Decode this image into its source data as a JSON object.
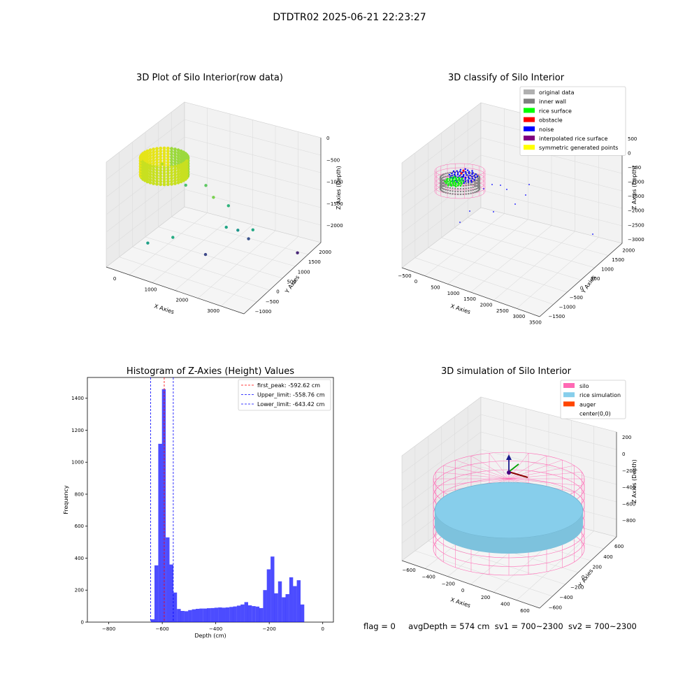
{
  "page_title": "DTDTR02 2025-06-21 22:23:27",
  "chart_data": [
    {
      "type": "scatter",
      "title": "3D Plot of Silo Interior(row data)",
      "xlabel": "X Axies",
      "ylabel": "Y Axies",
      "zlabel": "Z Axies (Depth)",
      "x_ticks": [
        "0",
        "1000",
        "2000",
        "3000"
      ],
      "y_ticks": [
        "−1000",
        "−500",
        "0",
        "500",
        "1000",
        "1500",
        "2000"
      ],
      "z_ticks": [
        "0",
        "−500",
        "−1000",
        "−1500",
        "−2000"
      ],
      "xlim": [
        -500,
        3600
      ],
      "ylim": [
        -1200,
        2000
      ],
      "zlim": [
        -2400,
        0
      ],
      "colormap": "viridis",
      "points": [
        {
          "x": 0,
          "y": 400,
          "z": -600,
          "c": "#b8de29"
        },
        {
          "x": 700,
          "y": 400,
          "z": -900,
          "c": "#4ac16d"
        },
        {
          "x": 1300,
          "y": 400,
          "z": -750,
          "c": "#5ec962"
        },
        {
          "x": 1600,
          "y": 300,
          "z": -900,
          "c": "#7ad151"
        },
        {
          "x": 1900,
          "y": 500,
          "z": -1100,
          "c": "#2fb47c"
        },
        {
          "x": 2200,
          "y": 0,
          "z": -1300,
          "c": "#21a585"
        },
        {
          "x": 2400,
          "y": 200,
          "z": -1400,
          "c": "#1f958b"
        },
        {
          "x": 2700,
          "y": 400,
          "z": -1400,
          "c": "#22a884"
        },
        {
          "x": 900,
          "y": -400,
          "z": -1700,
          "c": "#25ab82"
        },
        {
          "x": 300,
          "y": -600,
          "z": -1900,
          "c": "#1fa088"
        },
        {
          "x": 1800,
          "y": -300,
          "z": -1900,
          "c": "#3e4989"
        },
        {
          "x": 2500,
          "y": 500,
          "z": -1700,
          "c": "#3b528b"
        },
        {
          "x": 3300,
          "y": 1400,
          "z": -2200,
          "c": "#482677"
        }
      ]
    },
    {
      "type": "scatter",
      "title": "3D classify of Silo Interior",
      "xlabel": "X Axies",
      "ylabel": "Y Axies",
      "zlabel": "Z Axies (Depth)",
      "x_ticks": [
        "−500",
        "0",
        "500",
        "1000",
        "1500",
        "2000",
        "2500",
        "3000",
        "3500"
      ],
      "y_ticks": [
        "−1500",
        "−1000",
        "−500",
        "0",
        "500",
        "1000",
        "1500",
        "2000"
      ],
      "z_ticks": [
        "500",
        "0",
        "−500",
        "−1000",
        "−1500",
        "−2000",
        "−2500",
        "−3000"
      ],
      "xlim": [
        -600,
        3600
      ],
      "ylim": [
        -1600,
        2200
      ],
      "zlim": [
        -3100,
        600
      ],
      "legend": [
        {
          "name": "original data",
          "color": "#b0b0b0"
        },
        {
          "name": "inner wall",
          "color": "#808080"
        },
        {
          "name": "rice surface",
          "color": "#00ff00"
        },
        {
          "name": "obstacle",
          "color": "#ff0000"
        },
        {
          "name": "noise",
          "color": "#0000ff"
        },
        {
          "name": "interpolated rice surface",
          "color": "#800080"
        },
        {
          "name": "symmetric generated points",
          "color": "#ffff00"
        }
      ],
      "legend_position": "top-right"
    },
    {
      "type": "bar",
      "title": "Histogram of Z-Axies (Height) Values",
      "xlabel": "Depth (cm)",
      "ylabel": "Frequency",
      "xlim": [
        -880,
        40
      ],
      "ylim": [
        0,
        1530
      ],
      "x_ticks": [
        -800,
        -600,
        -400,
        -200,
        0
      ],
      "y_ticks": [
        0,
        200,
        400,
        600,
        800,
        1000,
        1200,
        1400
      ],
      "bin_width": 14,
      "bar_color": "#0000ff",
      "bins": [
        {
          "x": -643,
          "y": 18
        },
        {
          "x": -629,
          "y": 355
        },
        {
          "x": -615,
          "y": 1115
        },
        {
          "x": -601,
          "y": 1457
        },
        {
          "x": -587,
          "y": 530
        },
        {
          "x": -573,
          "y": 360
        },
        {
          "x": -559,
          "y": 185
        },
        {
          "x": -545,
          "y": 82
        },
        {
          "x": -531,
          "y": 70
        },
        {
          "x": -517,
          "y": 68
        },
        {
          "x": -503,
          "y": 75
        },
        {
          "x": -489,
          "y": 80
        },
        {
          "x": -475,
          "y": 83
        },
        {
          "x": -461,
          "y": 85
        },
        {
          "x": -447,
          "y": 85
        },
        {
          "x": -433,
          "y": 87
        },
        {
          "x": -419,
          "y": 88
        },
        {
          "x": -405,
          "y": 90
        },
        {
          "x": -391,
          "y": 92
        },
        {
          "x": -377,
          "y": 90
        },
        {
          "x": -363,
          "y": 92
        },
        {
          "x": -349,
          "y": 95
        },
        {
          "x": -335,
          "y": 98
        },
        {
          "x": -321,
          "y": 103
        },
        {
          "x": -307,
          "y": 110
        },
        {
          "x": -293,
          "y": 125
        },
        {
          "x": -279,
          "y": 105
        },
        {
          "x": -265,
          "y": 100
        },
        {
          "x": -251,
          "y": 97
        },
        {
          "x": -237,
          "y": 88
        },
        {
          "x": -223,
          "y": 200
        },
        {
          "x": -209,
          "y": 330
        },
        {
          "x": -195,
          "y": 410
        },
        {
          "x": -181,
          "y": 180
        },
        {
          "x": -167,
          "y": 255
        },
        {
          "x": -153,
          "y": 155
        },
        {
          "x": -139,
          "y": 175
        },
        {
          "x": -125,
          "y": 280
        },
        {
          "x": -111,
          "y": 225
        },
        {
          "x": -97,
          "y": 262
        },
        {
          "x": -83,
          "y": 110
        }
      ],
      "vlines": [
        {
          "label": "first_peak: -592.62 cm",
          "value": -592.62,
          "color": "#ff0000"
        },
        {
          "label": "Upper_limit: -558.76 cm",
          "value": -558.76,
          "color": "#0000ff"
        },
        {
          "label": "Lower_limit: -643.42 cm",
          "value": -643.42,
          "color": "#0000ff"
        }
      ],
      "legend_position": "top-right"
    },
    {
      "type": "scatter",
      "title": "3D simulation of Silo Interior",
      "xlabel": "X Axies",
      "ylabel": "Y Axies",
      "zlabel": "Z Axies (Depth)",
      "x_ticks": [
        "−600",
        "−400",
        "−200",
        "0",
        "200",
        "400",
        "600"
      ],
      "y_ticks": [
        "−600",
        "−400",
        "−200",
        "0",
        "200",
        "400",
        "600"
      ],
      "z_ticks": [
        "200",
        "0",
        "−200",
        "−400",
        "−600",
        "−800"
      ],
      "xlim": [
        -650,
        650
      ],
      "ylim": [
        -650,
        650
      ],
      "zlim": [
        -950,
        300
      ],
      "legend": [
        {
          "name": "silo",
          "color": "#ff69b4"
        },
        {
          "name": "rice simulation",
          "color": "#87ceeb"
        },
        {
          "name": "auger",
          "color": "#ff4500"
        },
        {
          "name": "center(0,0)",
          "color": "#ffffff"
        }
      ],
      "legend_position": "top-right"
    }
  ],
  "status": {
    "flag": "flag = 0",
    "avg_depth": "avgDepth = 574 cm",
    "sv1": "sv1 = 700~2300",
    "sv2": "sv2 = 700~2300"
  }
}
